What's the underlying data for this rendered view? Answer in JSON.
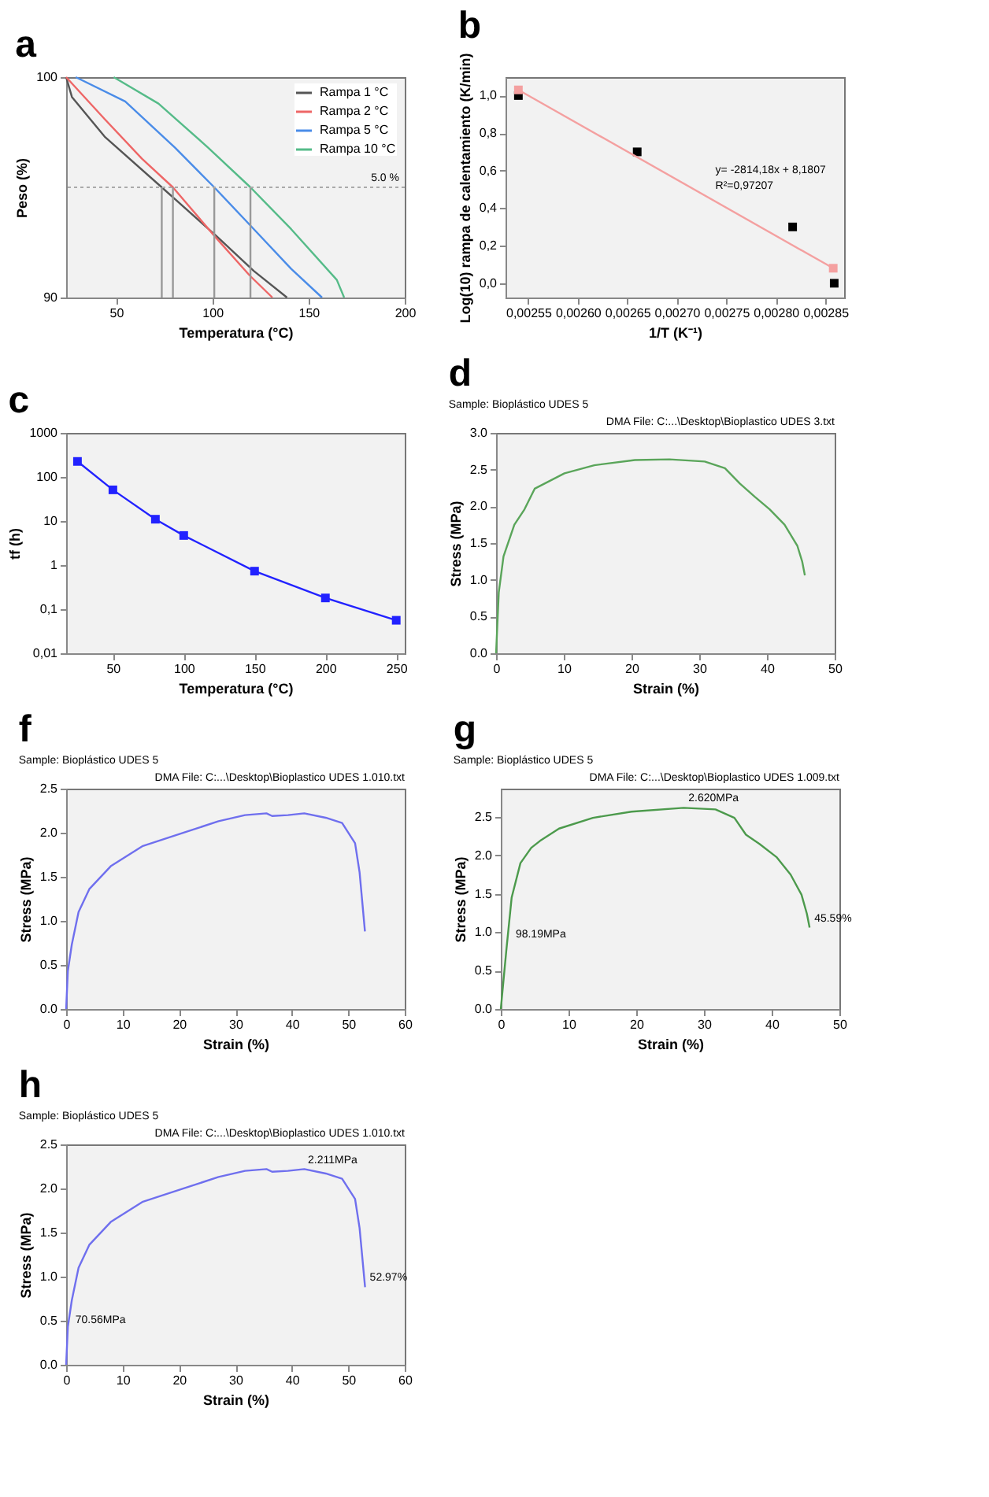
{
  "chart_data": [
    {
      "type": "line",
      "title": "a",
      "xlabel": "Temperatura (°C)",
      "ylabel": "Peso (%)",
      "xlim": [
        24,
        200
      ],
      "ylim": [
        90,
        100
      ],
      "xticks": [
        50,
        100,
        150,
        200
      ],
      "yticks": [
        90,
        100
      ],
      "legend": "top right",
      "line_style": "solid",
      "ref_lines": [
        {
          "axis": "y",
          "value": 95,
          "color": "#aaaaaa",
          "line_style": "dotted"
        }
      ],
      "annotations": [
        {
          "text": "5.0 %",
          "x": 180,
          "y": 95
        }
      ],
      "series": [
        {
          "name": "Rampa 1 °C",
          "color": "#555555",
          "x": [
            24,
            27,
            44,
            73.7,
            102,
            121.6,
            138.8
          ],
          "values": [
            100,
            99.1,
            97.3,
            95,
            92.8,
            91.2,
            90
          ]
        },
        {
          "name": "Rampa 2 °C",
          "color": "#ee6666",
          "x": [
            24,
            44,
            63.4,
            79.5,
            102,
            119.4,
            131.2
          ],
          "values": [
            100,
            98.1,
            96.3,
            95,
            92.7,
            91,
            90
          ]
        },
        {
          "name": "Rampa 5 °C",
          "color": "#4a8ce8",
          "x": [
            29,
            54.7,
            80.6,
            101,
            121.6,
            141,
            157
          ],
          "values": [
            100,
            98.9,
            96.8,
            95,
            93.1,
            91.3,
            90
          ]
        },
        {
          "name": "Rampa 10 °C",
          "color": "#55bb88",
          "x": [
            48.7,
            72,
            97.8,
            119.8,
            141,
            164.7,
            168.5
          ],
          "values": [
            100,
            98.8,
            96.8,
            95,
            93.1,
            90.8,
            90
          ]
        },
        {
          "color": "#999999",
          "x": [
            73.7,
            73.7
          ],
          "values": [
            90,
            95
          ]
        },
        {
          "color": "#999999",
          "x": [
            79.5,
            79.5
          ],
          "values": [
            90,
            95
          ]
        },
        {
          "color": "#999999",
          "x": [
            101,
            101
          ],
          "values": [
            90,
            95
          ]
        },
        {
          "color": "#999999",
          "x": [
            119.8,
            119.8
          ],
          "values": [
            90,
            95
          ]
        }
      ]
    },
    {
      "type": "scatter",
      "title": "b",
      "xlabel": "1/T (K⁻¹)",
      "ylabel": "Log(10) rampa de calentamiento (K/min)",
      "xlim": [
        0.002527,
        0.002869
      ],
      "ylim": [
        -0.076,
        1.098
      ],
      "marker": "square",
      "xticks": [
        {
          "value": 0.00255,
          "label": "0,00255"
        },
        {
          "value": 0.0026,
          "label": "0,00260"
        },
        {
          "value": 0.00265,
          "label": "0,00265"
        },
        {
          "value": 0.0027,
          "label": "0,00270"
        },
        {
          "value": 0.00275,
          "label": "0,00275"
        },
        {
          "value": 0.0028,
          "label": "0,00280"
        },
        {
          "value": 0.00285,
          "label": "0,00285"
        }
      ],
      "yticks": [
        {
          "value": 0,
          "label": "0,0"
        },
        {
          "value": 0.2,
          "label": "0,2"
        },
        {
          "value": 0.4,
          "label": "0,4"
        },
        {
          "value": 0.6,
          "label": "0,6"
        },
        {
          "value": 0.8,
          "label": "0,8"
        },
        {
          "value": 1,
          "label": "1,0"
        }
      ],
      "annotations": [
        "y= -2814,18x + 8,1807",
        "R²=0,97207"
      ],
      "series": [
        {
          "color": "#000000",
          "x": [
            0.00254,
            0.00266,
            0.002817,
            0.002859
          ],
          "values": [
            1.0,
            0.7,
            0.3,
            0.0
          ]
        },
        {
          "type": "line",
          "color": "#f4a0a0",
          "x": [
            0.00254,
            0.002858
          ],
          "values": [
            1.03,
            0.08
          ]
        }
      ]
    },
    {
      "type": "line",
      "title": "c",
      "xlabel": "Temperatura (°C)",
      "ylabel": "tf (h)",
      "log": "y",
      "marker": "square",
      "xlim": [
        17,
        256
      ],
      "ylim": [
        0.01,
        1000
      ],
      "xticks": [
        50,
        100,
        150,
        200,
        250
      ],
      "yticks": [
        {
          "value": 0.01,
          "label": "0,01"
        },
        {
          "value": 0.1,
          "label": "0,1"
        },
        1,
        10,
        100,
        1000
      ],
      "series": [
        {
          "color": "#2222ff",
          "x": [
            25,
            50,
            80,
            100,
            150,
            200,
            250
          ],
          "values": [
            225,
            51,
            11,
            4.7,
            0.73,
            0.18,
            0.056
          ]
        }
      ]
    },
    {
      "type": "line",
      "title": "d",
      "subtitle": "Sample: Bioplástico UDES 5",
      "annotations": [
        "DMA File: C:...\\Desktop\\Bioplastico UDES 3.txt"
      ],
      "xlabel": "Strain (%)",
      "ylabel": "Stress (MPa)",
      "xlim": [
        0,
        50
      ],
      "ylim": [
        0,
        3
      ],
      "xticks": [
        0,
        10,
        20,
        30,
        40,
        50
      ],
      "yticks": [
        {
          "value": 0,
          "label": "0.0"
        },
        0.5,
        {
          "value": 1,
          "label": "1.0"
        },
        1.5,
        {
          "value": 2,
          "label": "2.0"
        },
        2.5,
        {
          "value": 3,
          "label": "3.0"
        }
      ],
      "series": [
        {
          "color": "#5aa55a",
          "x": [
            0,
            0.4,
            1.1,
            2.7,
            4.2,
            5.7,
            10.1,
            14.5,
            20.5,
            25.6,
            30.8,
            33.8,
            36,
            38.2,
            40.4,
            42.6,
            44.5,
            45.2,
            45.6
          ],
          "values": [
            0,
            0.83,
            1.32,
            1.75,
            1.96,
            2.24,
            2.45,
            2.56,
            2.63,
            2.64,
            2.61,
            2.52,
            2.31,
            2.13,
            1.96,
            1.75,
            1.46,
            1.25,
            1.06
          ]
        }
      ]
    },
    {
      "type": "line",
      "title": "f",
      "subtitle": "Sample: Bioplástico UDES 5",
      "annotations": [
        "DMA File: C:...\\Desktop\\Bioplastico UDES 1.010.txt"
      ],
      "xlabel": "Strain (%)",
      "ylabel": "Stress (MPa)",
      "xlim": [
        0,
        60
      ],
      "ylim": [
        0,
        2.5
      ],
      "xticks": [
        0,
        10,
        20,
        30,
        40,
        50,
        60
      ],
      "yticks": [
        {
          "value": 0,
          "label": "0.0"
        },
        0.5,
        {
          "value": 1,
          "label": "1.0"
        },
        1.5,
        {
          "value": 2,
          "label": "2.0"
        },
        2.5
      ],
      "series": [
        {
          "color": "#6f6fee",
          "x": [
            0,
            0.3,
            1,
            2.2,
            4.1,
            7.9,
            13.6,
            20.3,
            27,
            31.7,
            35.5,
            36.5,
            39.3,
            42.2,
            46,
            48.9,
            51.2,
            52,
            52.95
          ],
          "values": [
            0,
            0.43,
            0.73,
            1.1,
            1.36,
            1.62,
            1.85,
            1.99,
            2.13,
            2.2,
            2.22,
            2.19,
            2.2,
            2.22,
            2.17,
            2.11,
            1.88,
            1.55,
            0.88
          ]
        }
      ]
    },
    {
      "type": "line",
      "title": "g",
      "subtitle": "Sample: Bioplástico UDES 5",
      "xlabel": "Strain (%)",
      "ylabel": "Stress (MPa)",
      "xlim": [
        0,
        50
      ],
      "ylim": [
        0,
        2.87
      ],
      "xticks": [
        0,
        10,
        20,
        30,
        40,
        50
      ],
      "yticks": [
        {
          "value": 0,
          "label": "0.0"
        },
        0.5,
        {
          "value": 1,
          "label": "1.0"
        },
        1.5,
        {
          "value": 2,
          "label": "2.0"
        },
        2.5
      ],
      "annotations": [
        "DMA File: C:...\\Desktop\\Bioplastico UDES 1.009.txt",
        {
          "text": "2.620MPa",
          "x": 27,
          "y": 2.62
        },
        {
          "text": "98.19MPa",
          "x": 1.5,
          "y": 0.85
        },
        {
          "text": "45.59%",
          "x": 45.6,
          "y": 1.06
        }
      ],
      "series": [
        {
          "color": "#4c9a4c",
          "x": [
            0,
            0.8,
            1.6,
            2.9,
            4.5,
            5.8,
            8.6,
            13.6,
            19.3,
            27,
            31.7,
            34.5,
            36.2,
            38.2,
            40.7,
            42.8,
            44.4,
            45.2,
            45.6
          ],
          "values": [
            0,
            0.75,
            1.45,
            1.9,
            2.1,
            2.19,
            2.35,
            2.49,
            2.57,
            2.62,
            2.6,
            2.49,
            2.27,
            2.15,
            1.98,
            1.75,
            1.49,
            1.24,
            1.06
          ]
        }
      ]
    },
    {
      "type": "line",
      "title": "h",
      "subtitle": "Sample: Bioplástico UDES 5",
      "xlabel": "Strain (%)",
      "ylabel": "Stress (MPa)",
      "xlim": [
        0,
        60
      ],
      "ylim": [
        0,
        2.5
      ],
      "xticks": [
        0,
        10,
        20,
        30,
        40,
        50,
        60
      ],
      "yticks": [
        {
          "value": 0,
          "label": "0.0"
        },
        0.5,
        {
          "value": 1,
          "label": "1.0"
        },
        1.5,
        {
          "value": 2,
          "label": "2.0"
        },
        2.5
      ],
      "annotations": [
        "DMA File: C:...\\Desktop\\Bioplastico UDES 1.010.txt",
        {
          "text": "2.211MPa",
          "x": 42,
          "y": 2.211
        },
        {
          "text": "70.56MPa",
          "x": 0.8,
          "y": 0.4
        },
        {
          "text": "52.97%",
          "x": 52.97,
          "y": 0.88
        }
      ],
      "series": [
        {
          "color": "#6f6fee",
          "x": [
            0,
            0.3,
            1,
            2.2,
            4.1,
            7.9,
            13.6,
            20.3,
            27,
            31.7,
            35.5,
            36.5,
            39.3,
            42.2,
            46,
            48.9,
            51.2,
            52,
            52.97
          ],
          "values": [
            0,
            0.43,
            0.73,
            1.1,
            1.36,
            1.62,
            1.85,
            1.99,
            2.13,
            2.2,
            2.22,
            2.19,
            2.2,
            2.22,
            2.17,
            2.11,
            1.88,
            1.55,
            0.88
          ]
        }
      ]
    }
  ]
}
